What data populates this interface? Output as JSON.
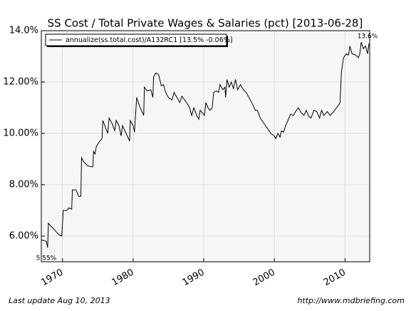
{
  "chart_data": {
    "type": "line",
    "title": "SS Cost / Total Private Wages & Salaries (pct) [2013-06-28]",
    "x": [
      1967.0,
      1967.7,
      1967.9,
      1968.0,
      1968.3,
      1968.7,
      1969.0,
      1969.5,
      1969.9,
      1970.1,
      1970.6,
      1970.9,
      1971.3,
      1971.4,
      1971.9,
      1972.3,
      1972.6,
      1972.7,
      1973.0,
      1973.5,
      1974.0,
      1974.3,
      1974.4,
      1974.6,
      1974.8,
      1975.3,
      1975.6,
      1975.7,
      1976.0,
      1976.4,
      1976.6,
      1977.0,
      1977.4,
      1977.6,
      1978.0,
      1978.3,
      1978.5,
      1979.0,
      1979.5,
      1979.6,
      1980.0,
      1980.2,
      1980.5,
      1981.0,
      1981.5,
      1981.6,
      1982.0,
      1982.5,
      1982.8,
      1982.9,
      1983.2,
      1983.6,
      1984.0,
      1984.3,
      1984.6,
      1985.0,
      1985.5,
      1985.8,
      1986.3,
      1986.6,
      1986.9,
      1987.3,
      1987.7,
      1988.0,
      1988.3,
      1988.6,
      1989.0,
      1989.3,
      1989.5,
      1989.8,
      1990.1,
      1990.3,
      1990.6,
      1990.9,
      1991.2,
      1991.4,
      1991.8,
      1992.1,
      1992.3,
      1992.7,
      1993.0,
      1993.1,
      1993.3,
      1993.6,
      1993.9,
      1994.2,
      1994.5,
      1994.8,
      1995.2,
      1995.6,
      1996.0,
      1996.4,
      1996.8,
      1997.3,
      1997.6,
      1998.0,
      1998.5,
      1999.0,
      1999.5,
      2000.0,
      2000.2,
      2000.5,
      2000.8,
      2001.0,
      2001.3,
      2001.6,
      2002.0,
      2002.3,
      2002.7,
      2003.0,
      2003.4,
      2003.8,
      2004.2,
      2004.5,
      2004.9,
      2005.2,
      2005.6,
      2006.0,
      2006.4,
      2006.7,
      2007.0,
      2007.5,
      2007.9,
      2008.4,
      2008.8,
      2009.1,
      2009.3,
      2009.5,
      2009.8,
      2010.2,
      2010.5,
      2010.7,
      2011.0,
      2011.5,
      2011.9,
      2012.1,
      2012.3,
      2012.6,
      2012.9,
      2013.2,
      2013.4
    ],
    "series": [
      {
        "name": "annualize(ss.total.cost)/A132RC1 [13.5% -0.06%]",
        "color": "#000000",
        "values": [
          5.85,
          5.8,
          5.55,
          6.5,
          6.4,
          6.3,
          6.2,
          6.05,
          6.0,
          7.0,
          7.0,
          7.1,
          7.05,
          7.8,
          7.8,
          7.55,
          7.55,
          9.05,
          8.9,
          8.75,
          8.7,
          8.7,
          9.3,
          9.2,
          9.5,
          9.7,
          9.8,
          10.5,
          10.3,
          10.0,
          10.6,
          10.4,
          10.1,
          10.5,
          10.3,
          9.9,
          10.3,
          10.0,
          9.7,
          10.5,
          10.3,
          10.05,
          11.4,
          11.0,
          10.7,
          11.8,
          11.65,
          11.7,
          11.4,
          12.2,
          12.35,
          12.3,
          11.85,
          11.9,
          11.6,
          11.4,
          11.3,
          11.6,
          11.35,
          11.2,
          11.45,
          11.3,
          11.15,
          11.0,
          10.7,
          11.0,
          10.7,
          10.55,
          10.9,
          10.8,
          10.7,
          11.2,
          11.0,
          10.9,
          11.0,
          11.6,
          11.65,
          11.6,
          11.9,
          11.7,
          11.8,
          11.4,
          12.1,
          11.8,
          12.0,
          11.75,
          12.1,
          11.7,
          11.9,
          11.7,
          11.6,
          11.4,
          11.2,
          10.9,
          10.9,
          10.6,
          10.4,
          10.2,
          10.0,
          9.9,
          9.8,
          10.0,
          9.85,
          10.1,
          10.05,
          10.3,
          10.55,
          10.75,
          10.7,
          10.85,
          11.0,
          10.8,
          10.7,
          10.9,
          10.65,
          10.6,
          10.9,
          10.85,
          10.6,
          10.9,
          10.7,
          10.85,
          10.7,
          10.85,
          11.0,
          11.1,
          11.2,
          12.4,
          12.95,
          13.1,
          13.05,
          13.4,
          13.1,
          13.05,
          12.95,
          13.1,
          13.55,
          13.3,
          13.4,
          13.1,
          13.5
        ]
      }
    ],
    "xlim": [
      1967.0,
      2013.5
    ],
    "xticks": [
      1970,
      1980,
      1990,
      2000,
      2010
    ],
    "ylim": [
      5,
      14
    ],
    "yticks": [
      {
        "value": 6,
        "label": "6.00%"
      },
      {
        "value": 8,
        "label": "8.00%"
      },
      {
        "value": 10,
        "label": "10.00%"
      },
      {
        "value": 12,
        "label": "12.00%"
      },
      {
        "value": 14,
        "label": "14.0%"
      }
    ],
    "grid": true,
    "legend": "upper left",
    "annotations": [
      "5.55%",
      "13.6%"
    ],
    "footer_left": "Last update Aug 10, 2013",
    "footer_right": "http://www.mdbriefing.com"
  }
}
